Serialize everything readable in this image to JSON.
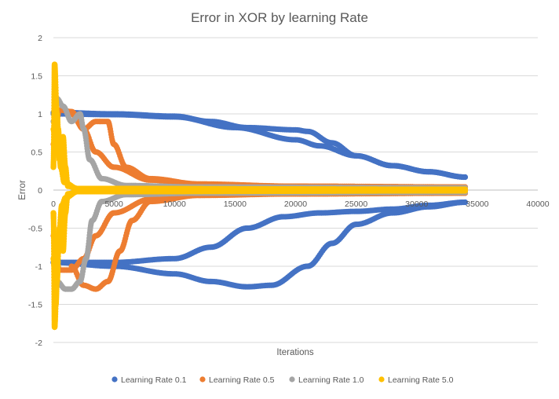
{
  "chart_data": {
    "type": "scatter",
    "title": "Error in XOR by learning Rate",
    "xlabel": "Iterations",
    "ylabel": "Error",
    "xlim": [
      0,
      40000
    ],
    "ylim": [
      -2,
      2
    ],
    "x_ticks": [
      0,
      5000,
      10000,
      15000,
      20000,
      25000,
      30000,
      35000,
      40000
    ],
    "y_ticks": [
      2,
      1.5,
      1,
      0.5,
      0,
      -0.5,
      -1,
      -1.5,
      -2
    ],
    "y_tick_labels": [
      "2",
      "1.5",
      "1",
      "0.5",
      "0",
      "-0.5",
      "-1",
      "-1.5",
      "-2"
    ],
    "grid": "horizontal",
    "legend_position": "bottom",
    "series": [
      {
        "name": "Learning Rate 0.1",
        "color": "#4472C4",
        "curves": [
          [
            [
              0,
              1.02
            ],
            [
              5000,
              1.0
            ],
            [
              10000,
              0.97
            ],
            [
              13000,
              0.9
            ],
            [
              16000,
              0.82
            ],
            [
              20000,
              0.79
            ],
            [
              21000,
              0.77
            ],
            [
              23000,
              0.62
            ],
            [
              25000,
              0.45
            ],
            [
              28000,
              0.32
            ],
            [
              31000,
              0.24
            ],
            [
              34000,
              0.17
            ]
          ],
          [
            [
              0,
              1.0
            ],
            [
              5000,
              0.99
            ],
            [
              10000,
              0.96
            ],
            [
              15000,
              0.82
            ],
            [
              20000,
              0.66
            ],
            [
              22000,
              0.58
            ],
            [
              25000,
              0.45
            ],
            [
              28000,
              0.32
            ],
            [
              31000,
              0.24
            ],
            [
              34000,
              0.17
            ]
          ],
          [
            [
              0,
              -0.95
            ],
            [
              5000,
              -0.95
            ],
            [
              10000,
              -0.9
            ],
            [
              13000,
              -0.75
            ],
            [
              16000,
              -0.5
            ],
            [
              19000,
              -0.35
            ],
            [
              22000,
              -0.3
            ],
            [
              25000,
              -0.28
            ],
            [
              28000,
              -0.25
            ],
            [
              31000,
              -0.2
            ],
            [
              34000,
              -0.16
            ]
          ],
          [
            [
              0,
              -0.95
            ],
            [
              5000,
              -1.0
            ],
            [
              10000,
              -1.1
            ],
            [
              13000,
              -1.2
            ],
            [
              16000,
              -1.27
            ],
            [
              18000,
              -1.25
            ],
            [
              21000,
              -1.0
            ],
            [
              23000,
              -0.7
            ],
            [
              25000,
              -0.45
            ],
            [
              28000,
              -0.3
            ],
            [
              31000,
              -0.22
            ],
            [
              34000,
              -0.16
            ]
          ]
        ]
      },
      {
        "name": "Learning Rate 0.5",
        "color": "#ED7D31",
        "curves": [
          [
            [
              0,
              0.6
            ],
            [
              500,
              1.05
            ],
            [
              1500,
              1.03
            ],
            [
              2500,
              0.8
            ],
            [
              3500,
              0.5
            ],
            [
              5000,
              0.3
            ],
            [
              8000,
              0.13
            ],
            [
              12000,
              0.07
            ],
            [
              20000,
              0.05
            ],
            [
              34000,
              0.04
            ]
          ],
          [
            [
              1500,
              1.0
            ],
            [
              2500,
              0.8
            ],
            [
              3500,
              0.9
            ],
            [
              4500,
              0.9
            ],
            [
              5000,
              0.6
            ],
            [
              6000,
              0.3
            ],
            [
              8000,
              0.15
            ],
            [
              12000,
              0.08
            ],
            [
              20000,
              0.05
            ],
            [
              34000,
              0.04
            ]
          ],
          [
            [
              0,
              -0.6
            ],
            [
              500,
              -1.05
            ],
            [
              1500,
              -1.05
            ],
            [
              2500,
              -0.9
            ],
            [
              3500,
              -0.6
            ],
            [
              5000,
              -0.3
            ],
            [
              8000,
              -0.12
            ],
            [
              12000,
              -0.06
            ],
            [
              20000,
              -0.05
            ],
            [
              34000,
              -0.04
            ]
          ],
          [
            [
              1500,
              -1.0
            ],
            [
              2500,
              -1.25
            ],
            [
              3500,
              -1.3
            ],
            [
              4500,
              -1.2
            ],
            [
              5500,
              -0.8
            ],
            [
              6500,
              -0.4
            ],
            [
              8000,
              -0.15
            ],
            [
              12000,
              -0.07
            ],
            [
              20000,
              -0.05
            ],
            [
              34000,
              -0.04
            ]
          ]
        ]
      },
      {
        "name": "Learning Rate 1.0",
        "color": "#A5A5A5",
        "curves": [
          [
            [
              0,
              0.9
            ],
            [
              300,
              1.2
            ],
            [
              800,
              1.1
            ],
            [
              1500,
              0.9
            ],
            [
              2200,
              1.0
            ],
            [
              2500,
              0.8
            ],
            [
              3000,
              0.4
            ],
            [
              4000,
              0.15
            ],
            [
              6000,
              0.06
            ],
            [
              12000,
              0.04
            ],
            [
              34000,
              0.03
            ]
          ],
          [
            [
              0,
              -0.9
            ],
            [
              300,
              -1.2
            ],
            [
              1000,
              -1.3
            ],
            [
              1500,
              -1.3
            ],
            [
              2200,
              -1.2
            ],
            [
              2700,
              -0.9
            ],
            [
              3200,
              -0.4
            ],
            [
              4000,
              -0.15
            ],
            [
              6000,
              -0.06
            ],
            [
              12000,
              -0.04
            ],
            [
              34000,
              -0.03
            ]
          ]
        ]
      },
      {
        "name": "Learning Rate 5.0",
        "color": "#FFC000",
        "curves": [
          [
            [
              0,
              0.3
            ],
            [
              100,
              1.65
            ],
            [
              300,
              1.0
            ],
            [
              500,
              0.4
            ],
            [
              800,
              0.7
            ],
            [
              1000,
              0.3
            ],
            [
              1200,
              0.05
            ],
            [
              2000,
              0.02
            ],
            [
              34000,
              0.01
            ]
          ],
          [
            [
              0,
              0.8
            ],
            [
              200,
              0.5
            ],
            [
              400,
              0.8
            ],
            [
              600,
              0.3
            ],
            [
              900,
              0.1
            ],
            [
              2000,
              0.02
            ],
            [
              34000,
              0.01
            ]
          ],
          [
            [
              0,
              -0.3
            ],
            [
              100,
              -1.8
            ],
            [
              300,
              -1.2
            ],
            [
              500,
              -0.5
            ],
            [
              800,
              -0.8
            ],
            [
              1000,
              -0.3
            ],
            [
              1200,
              -0.05
            ],
            [
              2000,
              -0.02
            ],
            [
              34000,
              -0.01
            ]
          ],
          [
            [
              0,
              -0.9
            ],
            [
              200,
              -1.5
            ],
            [
              400,
              -0.7
            ],
            [
              700,
              -0.2
            ],
            [
              1000,
              -0.1
            ],
            [
              2000,
              -0.02
            ],
            [
              34000,
              -0.01
            ]
          ]
        ]
      }
    ]
  }
}
